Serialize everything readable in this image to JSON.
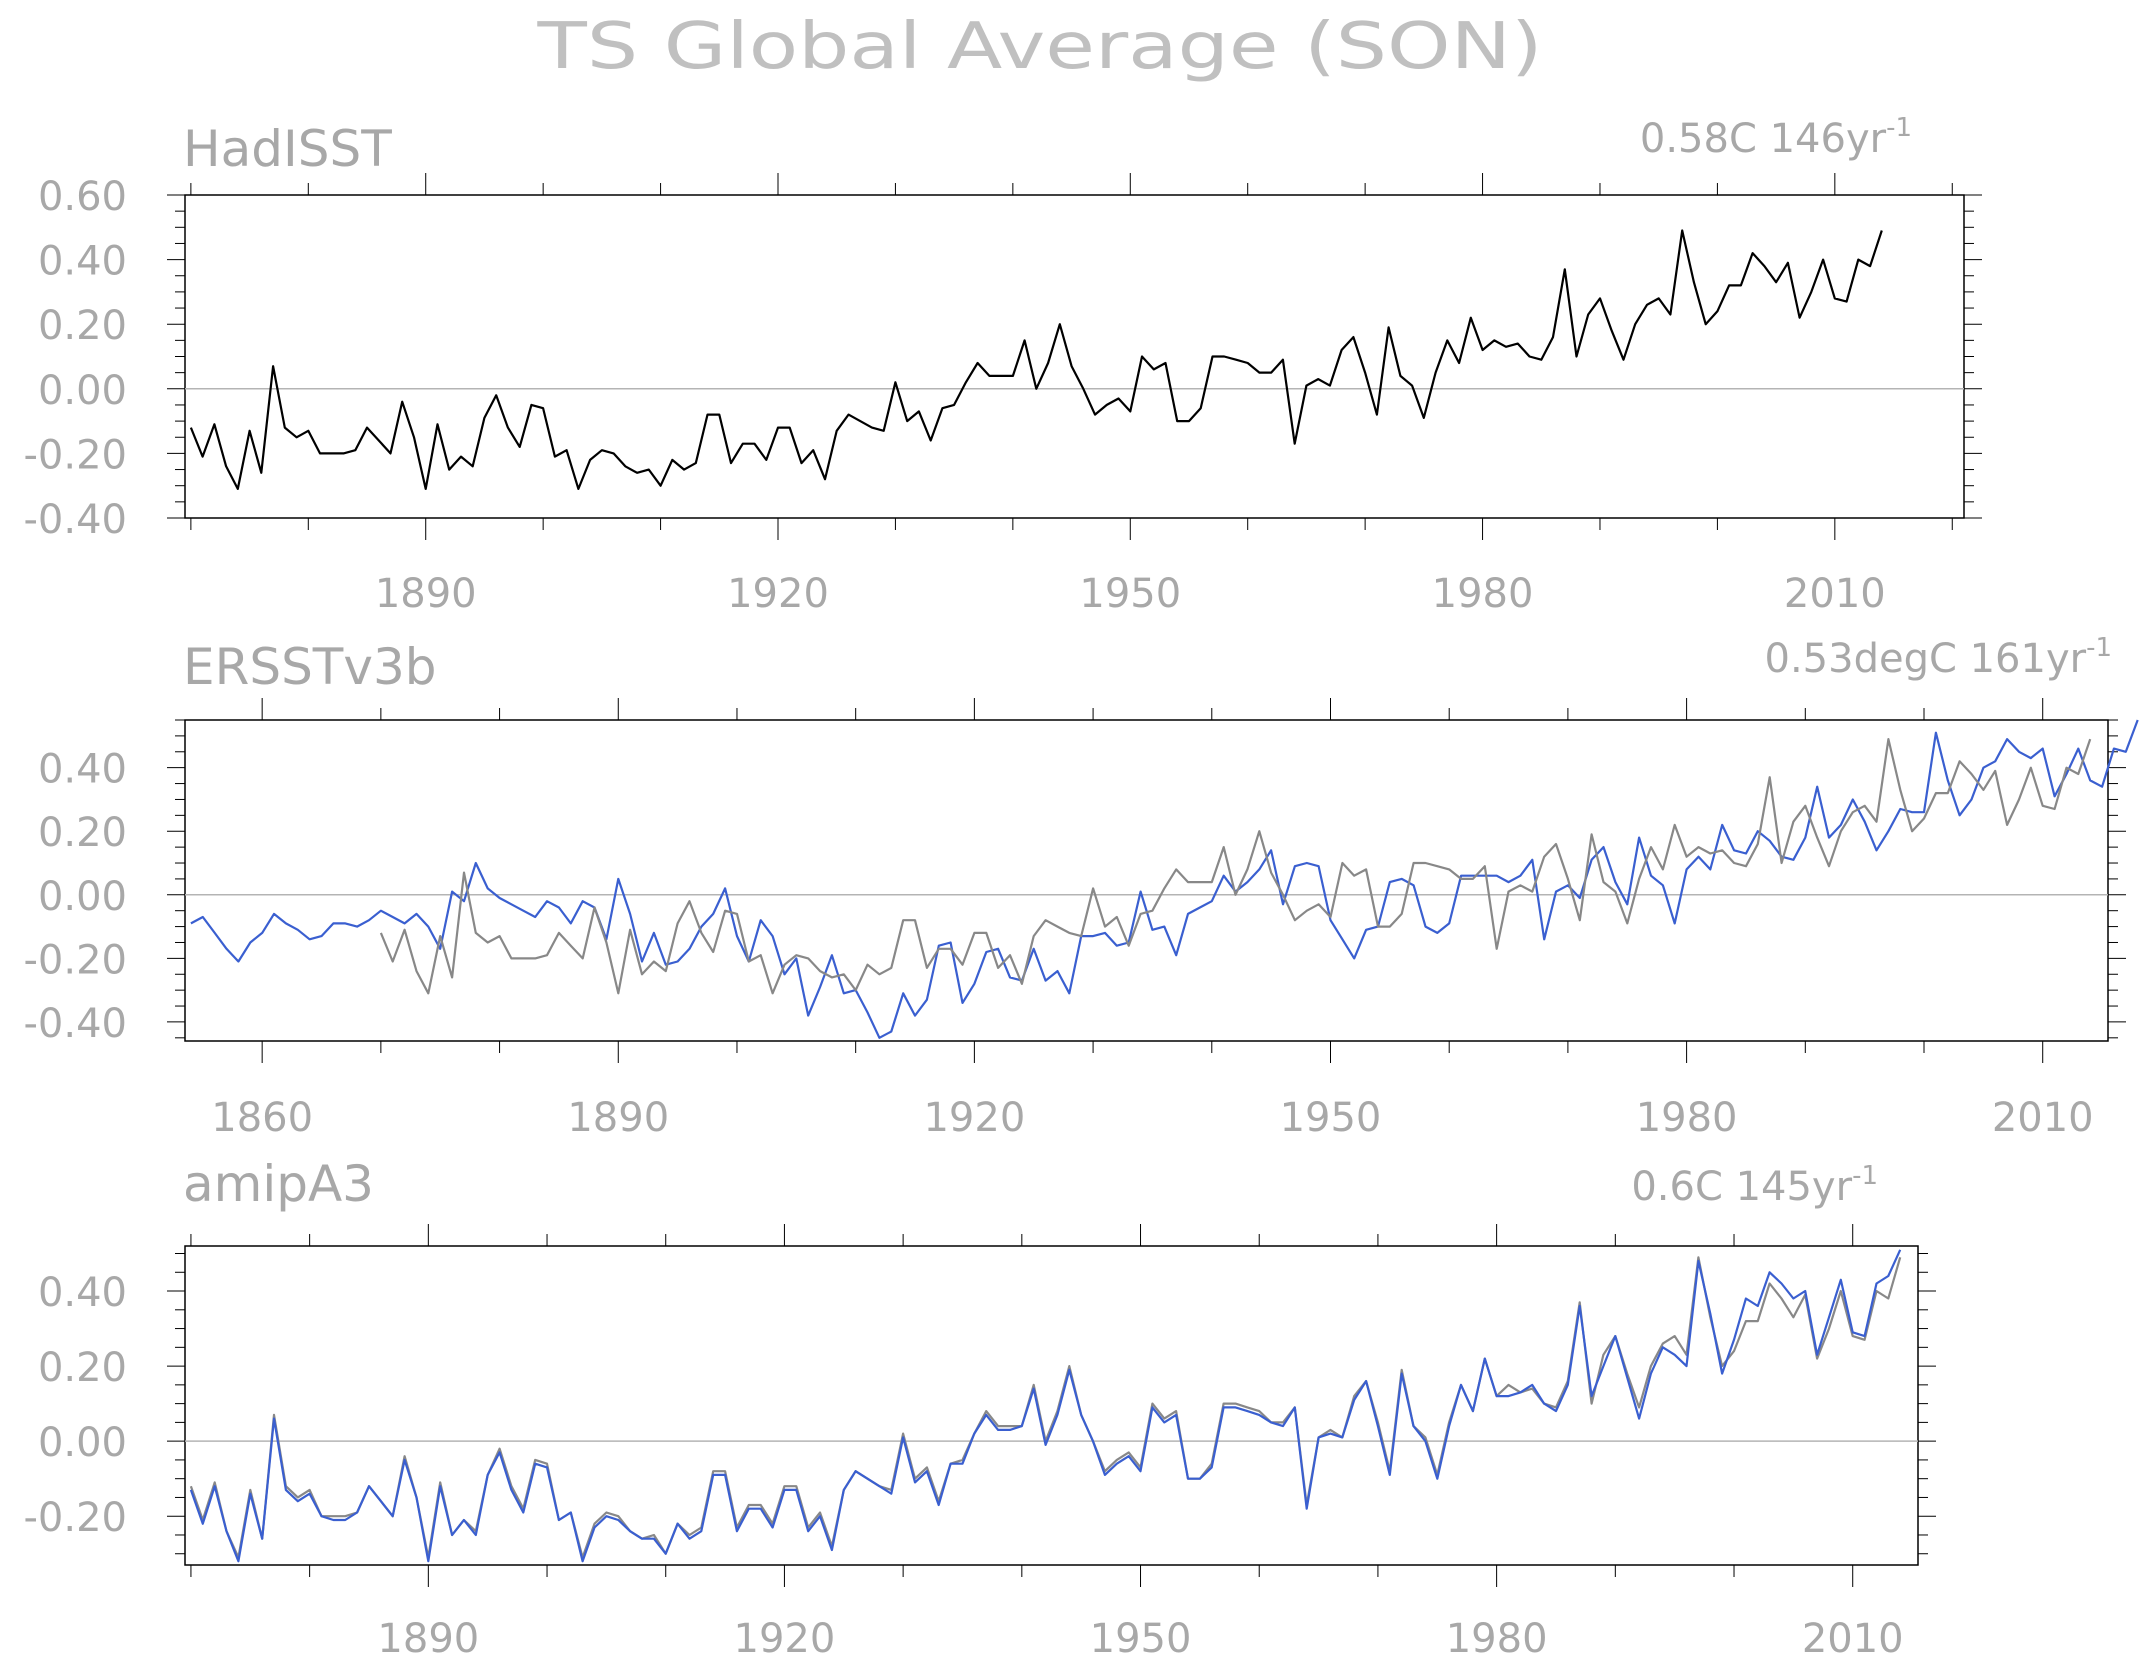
{
  "title": "TS Global Average (SON)",
  "colors": {
    "obs": "#000000",
    "obs_ref": "#888888",
    "model": "#3a5fd0",
    "zero": "#b4b4b4",
    "text": "#a8a8a8"
  },
  "panels": [
    {
      "name": "HadISST",
      "stat": {
        "value": "0.58C",
        "rate": "146yr",
        "exp": "-1"
      },
      "x_ticks": [
        "1890",
        "1920",
        "1950",
        "1980",
        "2010"
      ],
      "y_ticks": [
        "0.60",
        "0.40",
        "0.20",
        "0.00",
        "-0.20",
        "-0.40"
      ]
    },
    {
      "name": "ERSSTv3b",
      "stat": {
        "value": "0.53degC",
        "rate": "161yr",
        "exp": "-1"
      },
      "x_ticks": [
        "1860",
        "1890",
        "1920",
        "1950",
        "1980",
        "2010"
      ],
      "y_ticks": [
        "0.40",
        "0.20",
        "0.00",
        "-0.20",
        "-0.40"
      ]
    },
    {
      "name": "amipA3",
      "stat": {
        "value": "0.6C",
        "rate": "145yr",
        "exp": "-1"
      },
      "x_ticks": [
        "1890",
        "1920",
        "1950",
        "1980",
        "2010"
      ],
      "y_ticks": [
        "0.40",
        "0.20",
        "0.00",
        "-0.20"
      ]
    }
  ],
  "chart_data": [
    {
      "type": "line",
      "title": "HadISST",
      "xlim": [
        1869.5,
        2021
      ],
      "ylim": [
        -0.4,
        0.6
      ],
      "x_start": 1870,
      "series": [
        {
          "role": "obs",
          "values": [
            -0.12,
            -0.21,
            -0.11,
            -0.24,
            -0.31,
            -0.13,
            -0.26,
            0.07,
            -0.12,
            -0.15,
            -0.13,
            -0.2,
            -0.2,
            -0.2,
            -0.19,
            -0.12,
            -0.16,
            -0.2,
            -0.04,
            -0.15,
            -0.31,
            -0.11,
            -0.25,
            -0.21,
            -0.24,
            -0.09,
            -0.02,
            -0.12,
            -0.18,
            -0.05,
            -0.06,
            -0.21,
            -0.19,
            -0.31,
            -0.22,
            -0.19,
            -0.2,
            -0.24,
            -0.26,
            -0.25,
            -0.3,
            -0.22,
            -0.25,
            -0.23,
            -0.08,
            -0.08,
            -0.23,
            -0.17,
            -0.17,
            -0.22,
            -0.12,
            -0.12,
            -0.23,
            -0.19,
            -0.28,
            -0.13,
            -0.08,
            -0.1,
            -0.12,
            -0.13,
            0.02,
            -0.1,
            -0.07,
            -0.16,
            -0.06,
            -0.05,
            0.02,
            0.08,
            0.04,
            0.04,
            0.04,
            0.15,
            0.0,
            0.08,
            0.2,
            0.07,
            0.0,
            -0.08,
            -0.05,
            -0.03,
            -0.07,
            0.1,
            0.06,
            0.08,
            -0.1,
            -0.1,
            -0.06,
            0.1,
            0.1,
            0.09,
            0.08,
            0.05,
            0.05,
            0.09,
            -0.17,
            0.01,
            0.03,
            0.01,
            0.12,
            0.16,
            0.05,
            -0.08,
            0.19,
            0.04,
            0.01,
            -0.09,
            0.05,
            0.15,
            0.08,
            0.22,
            0.12,
            0.15,
            0.13,
            0.14,
            0.1,
            0.09,
            0.16,
            0.37,
            0.1,
            0.23,
            0.28,
            0.18,
            0.09,
            0.2,
            0.26,
            0.28,
            0.23,
            0.49,
            0.33,
            0.2,
            0.24,
            0.32,
            0.32,
            0.42,
            0.38,
            0.33,
            0.39,
            0.22,
            0.3,
            0.4,
            0.28,
            0.27,
            0.4,
            0.38,
            0.49
          ]
        }
      ]
    },
    {
      "type": "line",
      "title": "ERSSTv3b",
      "xlim": [
        1853.5,
        2015.5
      ],
      "ylim": [
        -0.46,
        0.55
      ],
      "x_start_model": 1854,
      "x_start_ref": 1870,
      "series": [
        {
          "role": "model",
          "values": [
            -0.09,
            -0.07,
            -0.12,
            -0.17,
            -0.21,
            -0.15,
            -0.12,
            -0.06,
            -0.09,
            -0.11,
            -0.14,
            -0.13,
            -0.09,
            -0.09,
            -0.1,
            -0.08,
            -0.05,
            -0.07,
            -0.09,
            -0.06,
            -0.1,
            -0.17,
            0.01,
            -0.02,
            0.1,
            0.02,
            -0.01,
            -0.03,
            -0.05,
            -0.07,
            -0.02,
            -0.04,
            -0.09,
            -0.02,
            -0.04,
            -0.14,
            0.05,
            -0.06,
            -0.21,
            -0.12,
            -0.22,
            -0.21,
            -0.17,
            -0.1,
            -0.06,
            0.02,
            -0.13,
            -0.21,
            -0.08,
            -0.13,
            -0.25,
            -0.2,
            -0.38,
            -0.29,
            -0.19,
            -0.31,
            -0.3,
            -0.37,
            -0.45,
            -0.43,
            -0.31,
            -0.38,
            -0.33,
            -0.16,
            -0.15,
            -0.34,
            -0.28,
            -0.18,
            -0.17,
            -0.26,
            -0.27,
            -0.17,
            -0.27,
            -0.24,
            -0.31,
            -0.13,
            -0.13,
            -0.12,
            -0.16,
            -0.15,
            0.01,
            -0.11,
            -0.1,
            -0.19,
            -0.06,
            -0.04,
            -0.02,
            0.06,
            0.01,
            0.04,
            0.08,
            0.14,
            -0.03,
            0.09,
            0.1,
            0.09,
            -0.08,
            -0.14,
            -0.2,
            -0.11,
            -0.1,
            0.04,
            0.05,
            0.03,
            -0.1,
            -0.12,
            -0.09,
            0.06,
            0.06,
            0.06,
            0.06,
            0.04,
            0.06,
            0.11,
            -0.14,
            0.01,
            0.03,
            -0.01,
            0.11,
            0.15,
            0.04,
            -0.03,
            0.18,
            0.06,
            0.03,
            -0.09,
            0.08,
            0.12,
            0.08,
            0.22,
            0.14,
            0.13,
            0.2,
            0.17,
            0.12,
            0.11,
            0.18,
            0.34,
            0.18,
            0.22,
            0.3,
            0.23,
            0.14,
            0.2,
            0.27,
            0.26,
            0.26,
            0.51,
            0.36,
            0.25,
            0.3,
            0.4,
            0.42,
            0.49,
            0.45,
            0.43,
            0.46,
            0.31,
            0.38,
            0.46,
            0.36,
            0.34,
            0.46,
            0.45,
            0.55
          ]
        },
        {
          "role": "obs_ref",
          "values": [
            -0.12,
            -0.21,
            -0.11,
            -0.24,
            -0.31,
            -0.13,
            -0.26,
            0.07,
            -0.12,
            -0.15,
            -0.13,
            -0.2,
            -0.2,
            -0.2,
            -0.19,
            -0.12,
            -0.16,
            -0.2,
            -0.04,
            -0.15,
            -0.31,
            -0.11,
            -0.25,
            -0.21,
            -0.24,
            -0.09,
            -0.02,
            -0.12,
            -0.18,
            -0.05,
            -0.06,
            -0.21,
            -0.19,
            -0.31,
            -0.22,
            -0.19,
            -0.2,
            -0.24,
            -0.26,
            -0.25,
            -0.3,
            -0.22,
            -0.25,
            -0.23,
            -0.08,
            -0.08,
            -0.23,
            -0.17,
            -0.17,
            -0.22,
            -0.12,
            -0.12,
            -0.23,
            -0.19,
            -0.28,
            -0.13,
            -0.08,
            -0.1,
            -0.12,
            -0.13,
            0.02,
            -0.1,
            -0.07,
            -0.16,
            -0.06,
            -0.05,
            0.02,
            0.08,
            0.04,
            0.04,
            0.04,
            0.15,
            0.0,
            0.08,
            0.2,
            0.07,
            0.0,
            -0.08,
            -0.05,
            -0.03,
            -0.07,
            0.1,
            0.06,
            0.08,
            -0.1,
            -0.1,
            -0.06,
            0.1,
            0.1,
            0.09,
            0.08,
            0.05,
            0.05,
            0.09,
            -0.17,
            0.01,
            0.03,
            0.01,
            0.12,
            0.16,
            0.05,
            -0.08,
            0.19,
            0.04,
            0.01,
            -0.09,
            0.05,
            0.15,
            0.08,
            0.22,
            0.12,
            0.15,
            0.13,
            0.14,
            0.1,
            0.09,
            0.16,
            0.37,
            0.1,
            0.23,
            0.28,
            0.18,
            0.09,
            0.2,
            0.26,
            0.28,
            0.23,
            0.49,
            0.33,
            0.2,
            0.24,
            0.32,
            0.32,
            0.42,
            0.38,
            0.33,
            0.39,
            0.22,
            0.3,
            0.4,
            0.28,
            0.27,
            0.4,
            0.38,
            0.49
          ]
        }
      ]
    },
    {
      "type": "line",
      "title": "amipA3",
      "xlim": [
        1869.5,
        2015.5
      ],
      "ylim": [
        -0.33,
        0.52
      ],
      "x_start": 1870,
      "series": [
        {
          "role": "obs_ref",
          "values": [
            -0.12,
            -0.21,
            -0.11,
            -0.24,
            -0.31,
            -0.13,
            -0.26,
            0.07,
            -0.12,
            -0.15,
            -0.13,
            -0.2,
            -0.2,
            -0.2,
            -0.19,
            -0.12,
            -0.16,
            -0.2,
            -0.04,
            -0.15,
            -0.31,
            -0.11,
            -0.25,
            -0.21,
            -0.24,
            -0.09,
            -0.02,
            -0.12,
            -0.18,
            -0.05,
            -0.06,
            -0.21,
            -0.19,
            -0.31,
            -0.22,
            -0.19,
            -0.2,
            -0.24,
            -0.26,
            -0.25,
            -0.3,
            -0.22,
            -0.25,
            -0.23,
            -0.08,
            -0.08,
            -0.23,
            -0.17,
            -0.17,
            -0.22,
            -0.12,
            -0.12,
            -0.23,
            -0.19,
            -0.28,
            -0.13,
            -0.08,
            -0.1,
            -0.12,
            -0.13,
            0.02,
            -0.1,
            -0.07,
            -0.16,
            -0.06,
            -0.05,
            0.02,
            0.08,
            0.04,
            0.04,
            0.04,
            0.15,
            0.0,
            0.08,
            0.2,
            0.07,
            0.0,
            -0.08,
            -0.05,
            -0.03,
            -0.07,
            0.1,
            0.06,
            0.08,
            -0.1,
            -0.1,
            -0.06,
            0.1,
            0.1,
            0.09,
            0.08,
            0.05,
            0.05,
            0.09,
            -0.17,
            0.01,
            0.03,
            0.01,
            0.12,
            0.16,
            0.05,
            -0.08,
            0.19,
            0.04,
            0.01,
            -0.09,
            0.05,
            0.15,
            0.08,
            0.22,
            0.12,
            0.15,
            0.13,
            0.14,
            0.1,
            0.09,
            0.16,
            0.37,
            0.1,
            0.23,
            0.28,
            0.18,
            0.09,
            0.2,
            0.26,
            0.28,
            0.23,
            0.49,
            0.33,
            0.2,
            0.24,
            0.32,
            0.32,
            0.42,
            0.38,
            0.33,
            0.39,
            0.22,
            0.3,
            0.4,
            0.28,
            0.27,
            0.4,
            0.38,
            0.49
          ]
        },
        {
          "role": "model",
          "values": [
            -0.13,
            -0.22,
            -0.12,
            -0.24,
            -0.32,
            -0.14,
            -0.26,
            0.06,
            -0.13,
            -0.16,
            -0.14,
            -0.2,
            -0.21,
            -0.21,
            -0.19,
            -0.12,
            -0.16,
            -0.2,
            -0.05,
            -0.15,
            -0.32,
            -0.12,
            -0.25,
            -0.21,
            -0.25,
            -0.09,
            -0.03,
            -0.13,
            -0.19,
            -0.06,
            -0.07,
            -0.21,
            -0.19,
            -0.32,
            -0.23,
            -0.2,
            -0.21,
            -0.24,
            -0.26,
            -0.26,
            -0.3,
            -0.22,
            -0.26,
            -0.24,
            -0.09,
            -0.09,
            -0.24,
            -0.18,
            -0.18,
            -0.23,
            -0.13,
            -0.13,
            -0.24,
            -0.2,
            -0.29,
            -0.13,
            -0.08,
            -0.1,
            -0.12,
            -0.14,
            0.01,
            -0.11,
            -0.08,
            -0.17,
            -0.06,
            -0.06,
            0.02,
            0.07,
            0.03,
            0.03,
            0.04,
            0.14,
            -0.01,
            0.07,
            0.19,
            0.07,
            0.0,
            -0.09,
            -0.06,
            -0.04,
            -0.08,
            0.09,
            0.05,
            0.07,
            -0.1,
            -0.1,
            -0.07,
            0.09,
            0.09,
            0.08,
            0.07,
            0.05,
            0.04,
            0.09,
            -0.18,
            0.01,
            0.02,
            0.01,
            0.11,
            0.16,
            0.04,
            -0.09,
            0.18,
            0.04,
            0.0,
            -0.1,
            0.04,
            0.15,
            0.08,
            0.22,
            0.12,
            0.12,
            0.13,
            0.15,
            0.1,
            0.08,
            0.15,
            0.36,
            0.12,
            0.2,
            0.28,
            0.17,
            0.06,
            0.18,
            0.25,
            0.23,
            0.2,
            0.48,
            0.34,
            0.18,
            0.27,
            0.38,
            0.36,
            0.45,
            0.42,
            0.38,
            0.4,
            0.23,
            0.33,
            0.43,
            0.29,
            0.28,
            0.42,
            0.44,
            0.51
          ]
        }
      ]
    }
  ]
}
